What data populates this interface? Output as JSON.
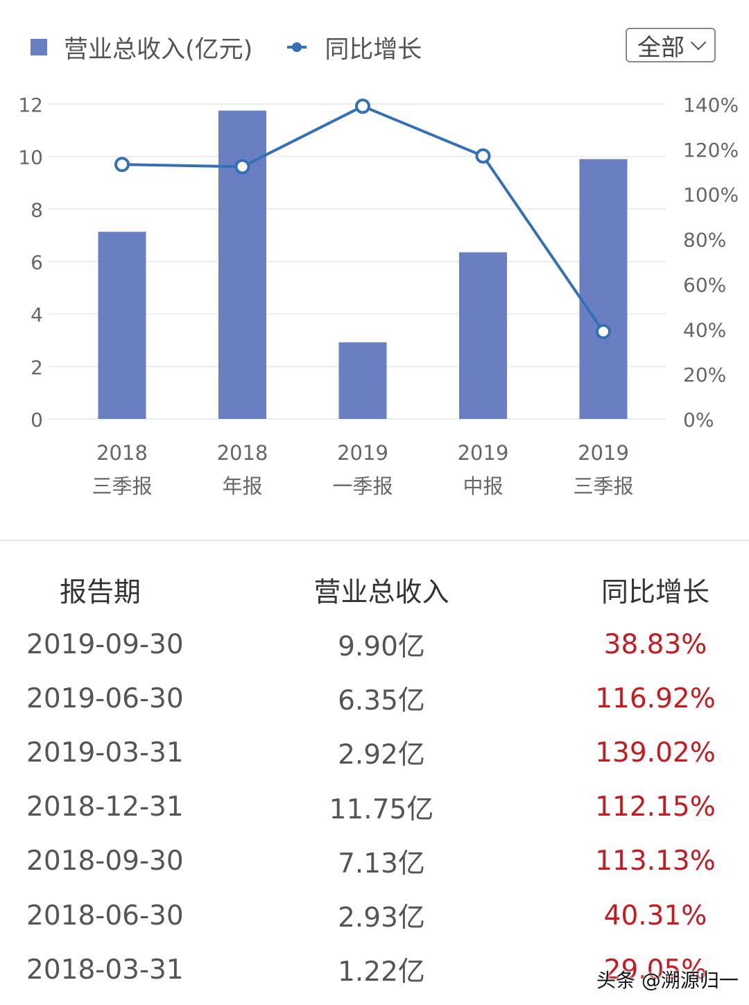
{
  "legend": {
    "bar_label": "营业总收入(亿元)",
    "line_label": "同比增长"
  },
  "filter": {
    "label": "全部"
  },
  "chart_data": {
    "type": "bar",
    "categories": [
      {
        "year": "2018",
        "period": "三季报"
      },
      {
        "year": "2018",
        "period": "年报"
      },
      {
        "year": "2019",
        "period": "一季报"
      },
      {
        "year": "2019",
        "period": "中报"
      },
      {
        "year": "2019",
        "period": "三季报"
      }
    ],
    "series": [
      {
        "name": "营业总收入(亿元)",
        "type": "bar",
        "axis": "left",
        "values": [
          7.13,
          11.75,
          2.92,
          6.35,
          9.9
        ]
      },
      {
        "name": "同比增长",
        "type": "line",
        "axis": "right",
        "values": [
          113.13,
          112.15,
          139.02,
          116.92,
          38.83
        ]
      }
    ],
    "y_left": {
      "min": 0,
      "max": 12,
      "ticks": [
        "0",
        "2",
        "4",
        "6",
        "8",
        "10",
        "12"
      ]
    },
    "y_right": {
      "min": 0,
      "max": 140,
      "ticks": [
        "0%",
        "20%",
        "40%",
        "60%",
        "80%",
        "100%",
        "120%",
        "140%"
      ]
    },
    "grid": true,
    "legend_position": "top-left",
    "colors": {
      "bar": "#6a7fc2",
      "line": "#3370b8",
      "positive": "#c8191f"
    }
  },
  "table": {
    "headers": [
      "报告期",
      "营业总收入",
      "同比增长"
    ],
    "rows": [
      [
        "2019-09-30",
        "9.90亿",
        "38.83%"
      ],
      [
        "2019-06-30",
        "6.35亿",
        "116.92%"
      ],
      [
        "2019-03-31",
        "2.92亿",
        "139.02%"
      ],
      [
        "2018-12-31",
        "11.75亿",
        "112.15%"
      ],
      [
        "2018-09-30",
        "7.13亿",
        "113.13%"
      ],
      [
        "2018-06-30",
        "2.93亿",
        "40.31%"
      ],
      [
        "2018-03-31",
        "1.22亿",
        "29.05%"
      ]
    ]
  },
  "watermark": "头条 @溯源归一"
}
